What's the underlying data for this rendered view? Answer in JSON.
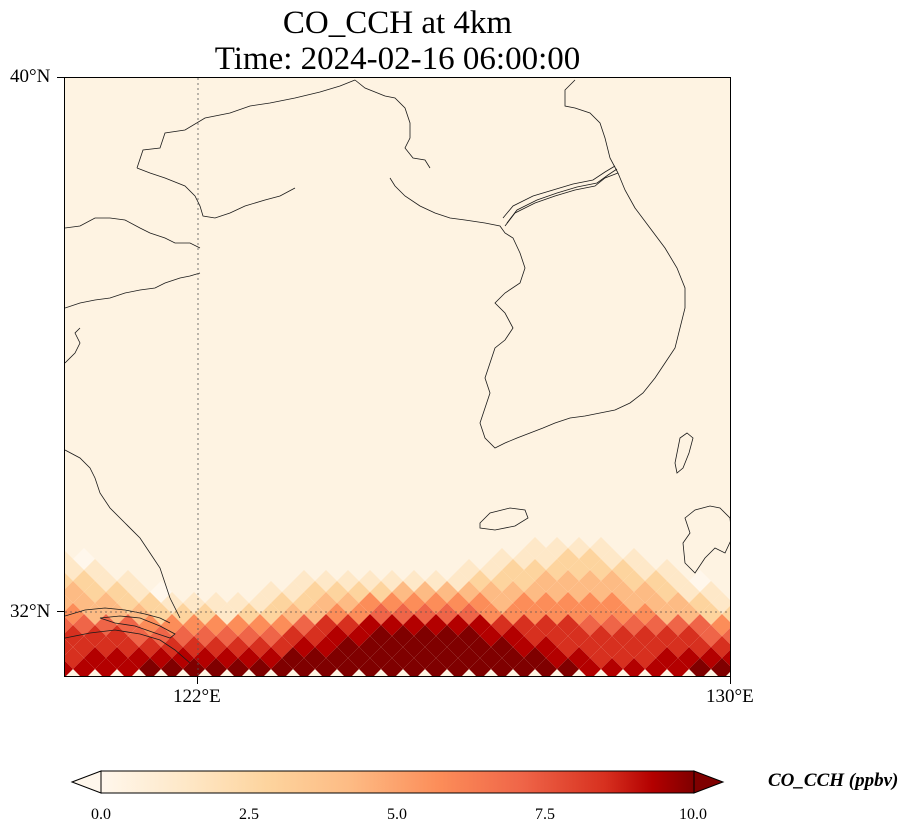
{
  "title": {
    "line1": "CO_CCH at 4km",
    "line2": "Time: 2024-02-16 06:00:00"
  },
  "axes": {
    "lat_ticks": [
      "40°N",
      "32°N"
    ],
    "lon_ticks": [
      "122°E",
      "130°E"
    ],
    "extent": {
      "lon": [
        120,
        130
      ],
      "lat": [
        31,
        40
      ]
    },
    "gridlines": {
      "lon": 122,
      "lat": 32,
      "style": "dotted"
    }
  },
  "colorbar": {
    "label": "CO_CCH (ppbv)",
    "ticks": [
      "0.0",
      "2.5",
      "5.0",
      "7.5",
      "10.0"
    ],
    "min": 0,
    "max": 10,
    "colormap": "OrRd",
    "extend": "both"
  },
  "colors": {
    "background_low": "#fef3e2",
    "low": "#fff7ec",
    "high": "#7f0000"
  }
}
